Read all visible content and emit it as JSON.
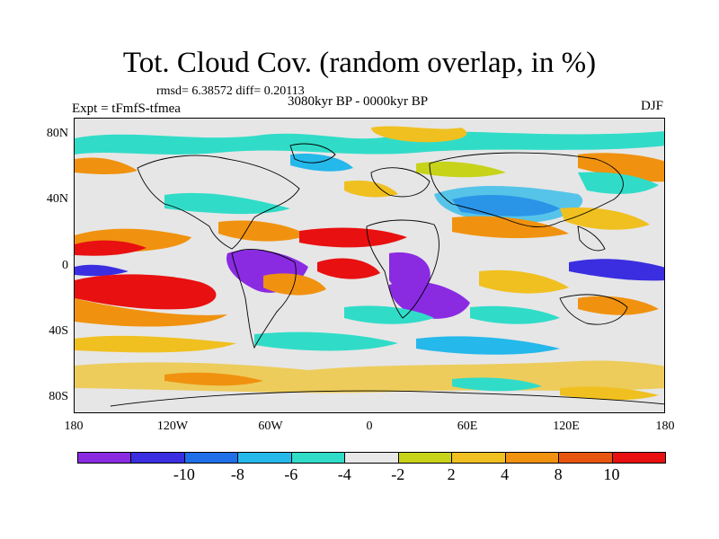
{
  "title": "Tot. Cloud Cov. (random overlap, in %)",
  "stats": "rmsd= 6.38572 diff= 0.20113",
  "expt": "Expt = tFmfS-tfmea",
  "period": "3080kyr BP - 0000kyr BP",
  "season": "DJF",
  "map": {
    "lon_labels": [
      "180",
      "120W",
      "60W",
      "0",
      "60E",
      "120E",
      "180"
    ],
    "lat_labels": [
      "80N",
      "40N",
      "0",
      "40S",
      "80S"
    ]
  },
  "colorbar": {
    "colors": [
      "#8a2be2",
      "#3a2ee0",
      "#1f6fe8",
      "#25b8ea",
      "#30dcc8",
      "#e8e8e8",
      "#c7d319",
      "#f0c020",
      "#f0920f",
      "#e85510",
      "#e81010"
    ],
    "labels": [
      "-10",
      "-8",
      "-6",
      "-4",
      "-2",
      "2",
      "4",
      "8",
      "10"
    ]
  }
}
